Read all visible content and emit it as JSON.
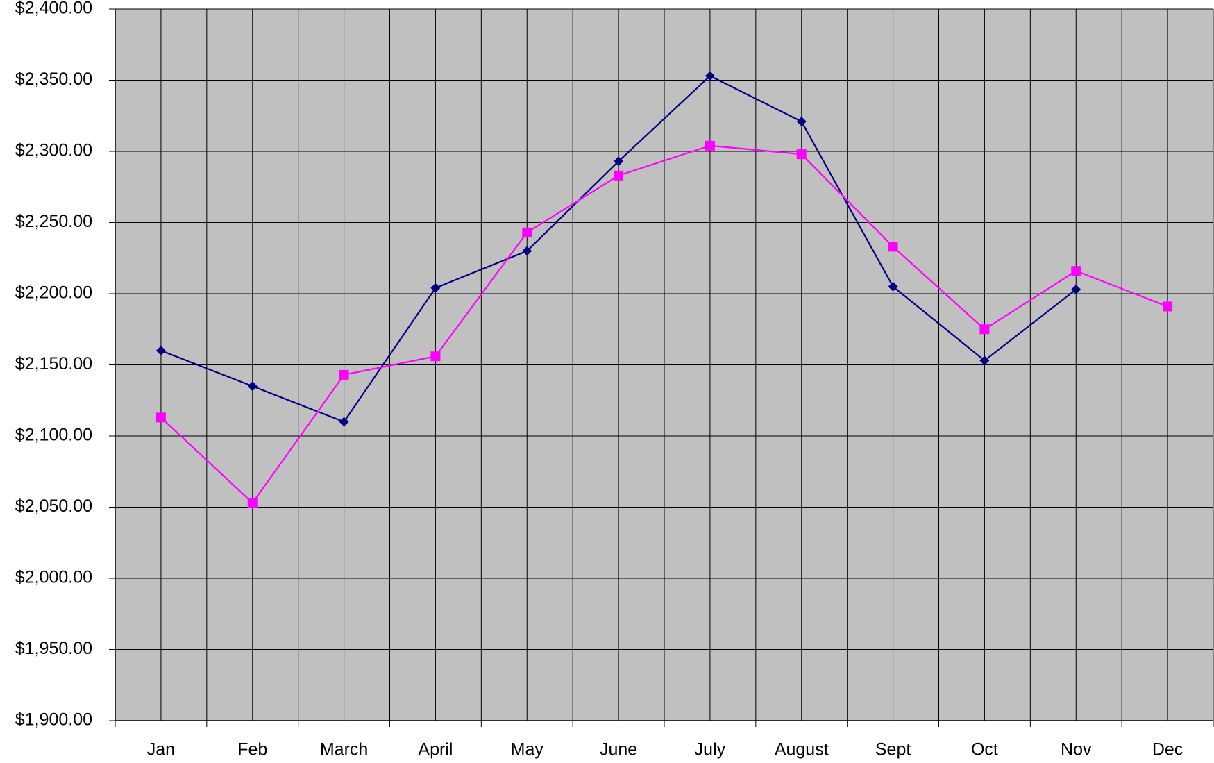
{
  "chart_data": {
    "type": "line",
    "categories": [
      "Jan",
      "Feb",
      "March",
      "April",
      "May",
      "June",
      "July",
      "August",
      "Sept",
      "Oct",
      "Nov",
      "Dec"
    ],
    "series": [
      {
        "color": "#000080",
        "marker": "diamond",
        "values": [
          2160,
          2135,
          2110,
          2204,
          2230,
          2293,
          2353,
          2321,
          2205,
          2153,
          2203,
          null
        ]
      },
      {
        "color": "#ff00ff",
        "marker": "square",
        "values": [
          2113,
          2053,
          2143,
          2156,
          2243,
          2283,
          2304,
          2298,
          2233,
          2175,
          2216,
          2191
        ]
      }
    ],
    "ylim": [
      1900,
      2400
    ],
    "yticks": [
      {
        "value": 1900,
        "label": "$1,900.00"
      },
      {
        "value": 1950,
        "label": "$1,950.00"
      },
      {
        "value": 2000,
        "label": "$2,000.00"
      },
      {
        "value": 2050,
        "label": "$2,050.00"
      },
      {
        "value": 2100,
        "label": "$2,100.00"
      },
      {
        "value": 2150,
        "label": "$2,150.00"
      },
      {
        "value": 2200,
        "label": "$2,200.00"
      },
      {
        "value": 2250,
        "label": "$2,250.00"
      },
      {
        "value": 2300,
        "label": "$2,300.00"
      },
      {
        "value": 2350,
        "label": "$2,350.00"
      },
      {
        "value": 2400,
        "label": "$2,400.00"
      }
    ],
    "grid": true,
    "plot_background": "#c0c0c0"
  }
}
